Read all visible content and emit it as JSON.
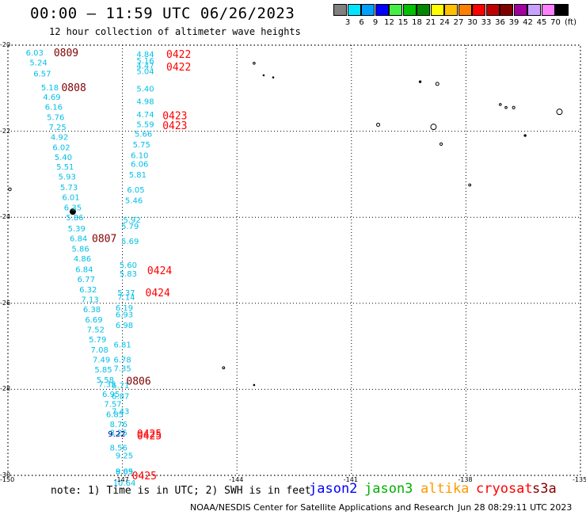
{
  "header": {
    "title": "00:00 – 11:59 UTC 06/26/2023",
    "subtitle": "12 hour collection of altimeter wave heights"
  },
  "legend": {
    "unit": "(ft)",
    "bins": [
      {
        "label": "3",
        "color": "#808080"
      },
      {
        "label": "6",
        "color": "#00e5ff"
      },
      {
        "label": "9",
        "color": "#00a0ff"
      },
      {
        "label": "12",
        "color": "#0000ff"
      },
      {
        "label": "15",
        "color": "#44ee44"
      },
      {
        "label": "18",
        "color": "#00c000"
      },
      {
        "label": "21",
        "color": "#008800"
      },
      {
        "label": "24",
        "color": "#ffff00"
      },
      {
        "label": "27",
        "color": "#ffc000"
      },
      {
        "label": "30",
        "color": "#ff8000"
      },
      {
        "label": "33",
        "color": "#ff0000"
      },
      {
        "label": "36",
        "color": "#c00000"
      },
      {
        "label": "39",
        "color": "#800000"
      },
      {
        "label": "42",
        "color": "#a000a0"
      },
      {
        "label": "45",
        "color": "#c8a0ff"
      },
      {
        "label": "70",
        "color": "#ff80ff"
      },
      {
        "label": "",
        "color": "#000000"
      }
    ]
  },
  "axes": {
    "lat_labels": [
      "-20",
      "-22",
      "-24",
      "-26",
      "-28",
      "-30"
    ],
    "lon_labels": [
      "-150",
      "-147",
      "-144",
      "-141",
      "-138",
      "-135"
    ]
  },
  "map": {
    "lon_range": [
      -150,
      -135
    ],
    "lat_range": [
      -20,
      -30
    ],
    "wave_color": "#00bfe8",
    "highlight_color": "#00008b",
    "track_label_color_dark": "#800000",
    "track_label_color_red": "#ff0000",
    "swh_points": [
      {
        "lon": -149.3,
        "lat": -20.17,
        "v": "6.03"
      },
      {
        "lon": -149.2,
        "lat": -20.4,
        "v": "5.24"
      },
      {
        "lon": -149.1,
        "lat": -20.65,
        "v": "6.57"
      },
      {
        "lon": -148.9,
        "lat": -20.98,
        "v": "5.18"
      },
      {
        "lon": -148.85,
        "lat": -21.2,
        "v": "4.69"
      },
      {
        "lon": -148.8,
        "lat": -21.43,
        "v": "6.16"
      },
      {
        "lon": -148.75,
        "lat": -21.67,
        "v": "5.76"
      },
      {
        "lon": -148.7,
        "lat": -21.9,
        "v": "7.25"
      },
      {
        "lon": -148.65,
        "lat": -22.13,
        "v": "4.92"
      },
      {
        "lon": -148.6,
        "lat": -22.37,
        "v": "6.02"
      },
      {
        "lon": -148.55,
        "lat": -22.6,
        "v": "5.40"
      },
      {
        "lon": -148.5,
        "lat": -22.82,
        "v": "5.51"
      },
      {
        "lon": -148.45,
        "lat": -23.05,
        "v": "5.93"
      },
      {
        "lon": -148.4,
        "lat": -23.3,
        "v": "5.73"
      },
      {
        "lon": -148.35,
        "lat": -23.53,
        "v": "6.01"
      },
      {
        "lon": -148.3,
        "lat": -23.77,
        "v": "6.35"
      },
      {
        "lon": -148.25,
        "lat": -24.0,
        "v": "5.86"
      },
      {
        "lon": -148.2,
        "lat": -24.25,
        "v": "5.39"
      },
      {
        "lon": -148.15,
        "lat": -24.48,
        "v": "6.84"
      },
      {
        "lon": -148.1,
        "lat": -24.72,
        "v": "5.86"
      },
      {
        "lon": -148.05,
        "lat": -24.95,
        "v": "4.86"
      },
      {
        "lon": -148.0,
        "lat": -25.2,
        "v": "6.84"
      },
      {
        "lon": -147.95,
        "lat": -25.43,
        "v": "6.77"
      },
      {
        "lon": -147.9,
        "lat": -25.67,
        "v": "6.32"
      },
      {
        "lon": -147.85,
        "lat": -25.9,
        "v": "7.13"
      },
      {
        "lon": -147.8,
        "lat": -26.13,
        "v": "6.38"
      },
      {
        "lon": -147.75,
        "lat": -26.37,
        "v": "6.69"
      },
      {
        "lon": -147.7,
        "lat": -26.6,
        "v": "7.52"
      },
      {
        "lon": -147.65,
        "lat": -26.83,
        "v": "5.79"
      },
      {
        "lon": -147.6,
        "lat": -27.07,
        "v": "7.08"
      },
      {
        "lon": -147.55,
        "lat": -27.3,
        "v": "7.49"
      },
      {
        "lon": -147.5,
        "lat": -27.53,
        "v": "5.85"
      },
      {
        "lon": -147.45,
        "lat": -27.77,
        "v": "5.58"
      },
      {
        "lon": -147.4,
        "lat": -27.87,
        "v": "7.35"
      },
      {
        "lon": -147.3,
        "lat": -28.1,
        "v": "6.95"
      },
      {
        "lon": -147.25,
        "lat": -28.33,
        "v": "7.57"
      },
      {
        "lon": -147.2,
        "lat": -28.57,
        "v": "6.85"
      },
      {
        "lon": -147.1,
        "lat": -29.35,
        "v": "8.56"
      },
      {
        "lon": -146.95,
        "lat": -29.9,
        "v": "8.69"
      },
      {
        "lon": -146.4,
        "lat": -20.2,
        "v": "4.84"
      },
      {
        "lon": -146.4,
        "lat": -20.35,
        "v": "5.16"
      },
      {
        "lon": -146.4,
        "lat": -20.47,
        "v": "4.47"
      },
      {
        "lon": -146.4,
        "lat": -20.6,
        "v": "5.04"
      },
      {
        "lon": -146.4,
        "lat": -21.0,
        "v": "5.40"
      },
      {
        "lon": -146.4,
        "lat": -21.3,
        "v": "4.98"
      },
      {
        "lon": -146.4,
        "lat": -21.6,
        "v": "4.74"
      },
      {
        "lon": -146.4,
        "lat": -21.83,
        "v": "5.59"
      },
      {
        "lon": -146.45,
        "lat": -22.05,
        "v": "5.66"
      },
      {
        "lon": -146.5,
        "lat": -22.3,
        "v": "5.75"
      },
      {
        "lon": -146.55,
        "lat": -22.55,
        "v": "6.10"
      },
      {
        "lon": -146.55,
        "lat": -22.75,
        "v": "6.06"
      },
      {
        "lon": -146.6,
        "lat": -23.0,
        "v": "5.81"
      },
      {
        "lon": -146.65,
        "lat": -23.35,
        "v": "6.05"
      },
      {
        "lon": -146.7,
        "lat": -23.6,
        "v": "5.46"
      },
      {
        "lon": -146.75,
        "lat": -24.05,
        "v": "5.92"
      },
      {
        "lon": -146.8,
        "lat": -24.2,
        "v": "5.79"
      },
      {
        "lon": -146.8,
        "lat": -24.55,
        "v": "5.69"
      },
      {
        "lon": -146.85,
        "lat": -25.1,
        "v": "5.60"
      },
      {
        "lon": -146.85,
        "lat": -25.3,
        "v": "5.83"
      },
      {
        "lon": -146.9,
        "lat": -25.75,
        "v": "5.37"
      },
      {
        "lon": -146.9,
        "lat": -25.85,
        "v": "7.14"
      },
      {
        "lon": -146.95,
        "lat": -26.1,
        "v": "6.19"
      },
      {
        "lon": -146.95,
        "lat": -26.25,
        "v": "6.93"
      },
      {
        "lon": -146.95,
        "lat": -26.5,
        "v": "6.98"
      },
      {
        "lon": -147.0,
        "lat": -26.95,
        "v": "6.81"
      },
      {
        "lon": -147.0,
        "lat": -27.3,
        "v": "6.78"
      },
      {
        "lon": -147.0,
        "lat": -27.5,
        "v": "7.35"
      },
      {
        "lon": -147.05,
        "lat": -27.9,
        "v": "6.71"
      },
      {
        "lon": -147.05,
        "lat": -28.15,
        "v": "6.87"
      },
      {
        "lon": -147.05,
        "lat": -28.5,
        "v": "7.43"
      },
      {
        "lon": -147.1,
        "lat": -28.8,
        "v": "8.76"
      },
      {
        "lon": -147.1,
        "lat": -29.0,
        "v": "8.25"
      },
      {
        "lon": -146.95,
        "lat": -29.53,
        "v": "9.25"
      },
      {
        "lon": -146.95,
        "lat": -29.9,
        "v": "9.05"
      },
      {
        "lon": -146.95,
        "lat": -30.17,
        "v": "10.64"
      }
    ],
    "highlight_points": [
      {
        "lon": -147.15,
        "lat": -29.02,
        "v": "9.22"
      }
    ],
    "track_labels": [
      {
        "lon": -148.8,
        "lat": -20.17,
        "t": "0809",
        "c": "dark"
      },
      {
        "lon": -148.6,
        "lat": -20.98,
        "t": "0808",
        "c": "dark"
      },
      {
        "lon": -147.8,
        "lat": -24.48,
        "t": "0807",
        "c": "dark"
      },
      {
        "lon": -146.9,
        "lat": -27.8,
        "t": "0806",
        "c": "dark"
      },
      {
        "lon": -145.85,
        "lat": -20.2,
        "t": "0422",
        "c": "red"
      },
      {
        "lon": -145.85,
        "lat": -20.5,
        "t": "0422",
        "c": "red"
      },
      {
        "lon": -145.95,
        "lat": -21.63,
        "t": "0423",
        "c": "red"
      },
      {
        "lon": -145.95,
        "lat": -21.86,
        "t": "0423",
        "c": "red"
      },
      {
        "lon": -146.35,
        "lat": -25.23,
        "t": "0424",
        "c": "red"
      },
      {
        "lon": -146.4,
        "lat": -25.75,
        "t": "0424",
        "c": "red"
      },
      {
        "lon": -146.62,
        "lat": -29.02,
        "t": "0425",
        "c": "red"
      },
      {
        "lon": -146.62,
        "lat": -29.07,
        "t": "0425",
        "c": "red"
      },
      {
        "lon": -146.75,
        "lat": -30.0,
        "t": "0425",
        "c": "red"
      }
    ],
    "islands": [
      {
        "lon": -149.95,
        "lat": -23.35,
        "r": 1.8,
        "solid": false
      },
      {
        "lon": -148.3,
        "lat": -23.87,
        "r": 3.5,
        "solid": true
      },
      {
        "lon": -143.55,
        "lat": -20.42,
        "r": 1.3,
        "solid": false
      },
      {
        "lon": -143.3,
        "lat": -20.7,
        "r": 0.8,
        "solid": true
      },
      {
        "lon": -143.05,
        "lat": -20.75,
        "r": 0.8,
        "solid": true
      },
      {
        "lon": -140.3,
        "lat": -21.85,
        "r": 2.0,
        "solid": false
      },
      {
        "lon": -139.2,
        "lat": -20.85,
        "r": 1.2,
        "solid": true
      },
      {
        "lon": -138.75,
        "lat": -20.9,
        "r": 2.0,
        "solid": false
      },
      {
        "lon": -138.85,
        "lat": -21.9,
        "r": 3.5,
        "solid": false
      },
      {
        "lon": -138.65,
        "lat": -22.3,
        "r": 1.6,
        "solid": false
      },
      {
        "lon": -137.9,
        "lat": -23.25,
        "r": 1.4,
        "solid": false
      },
      {
        "lon": -137.1,
        "lat": -21.38,
        "r": 1.3,
        "solid": false
      },
      {
        "lon": -136.95,
        "lat": -21.45,
        "r": 1.3,
        "solid": false
      },
      {
        "lon": -136.75,
        "lat": -21.45,
        "r": 1.6,
        "solid": false
      },
      {
        "lon": -136.45,
        "lat": -22.1,
        "r": 1.2,
        "solid": true
      },
      {
        "lon": -135.55,
        "lat": -21.55,
        "r": 3.5,
        "solid": false
      },
      {
        "lon": -144.35,
        "lat": -27.5,
        "r": 1.4,
        "solid": false
      },
      {
        "lon": -143.55,
        "lat": -27.9,
        "r": 0.8,
        "solid": true
      }
    ]
  },
  "footer": {
    "note": "note: 1) Time is in UTC; 2) SWH is in feet",
    "satellites": [
      {
        "name": "jason2",
        "color": "#0000ff"
      },
      {
        "name": "jason3",
        "color": "#00b000"
      },
      {
        "name": "altika",
        "color": "#ff9900"
      },
      {
        "name": "cryosat",
        "color": "#ff0000"
      },
      {
        "name": "s3a",
        "color": "#800000"
      }
    ],
    "credit": "NOAA/NESDIS Center for Satellite Applications and Research",
    "timestamp": "Jun 28 08:29:11 UTC 2023"
  }
}
